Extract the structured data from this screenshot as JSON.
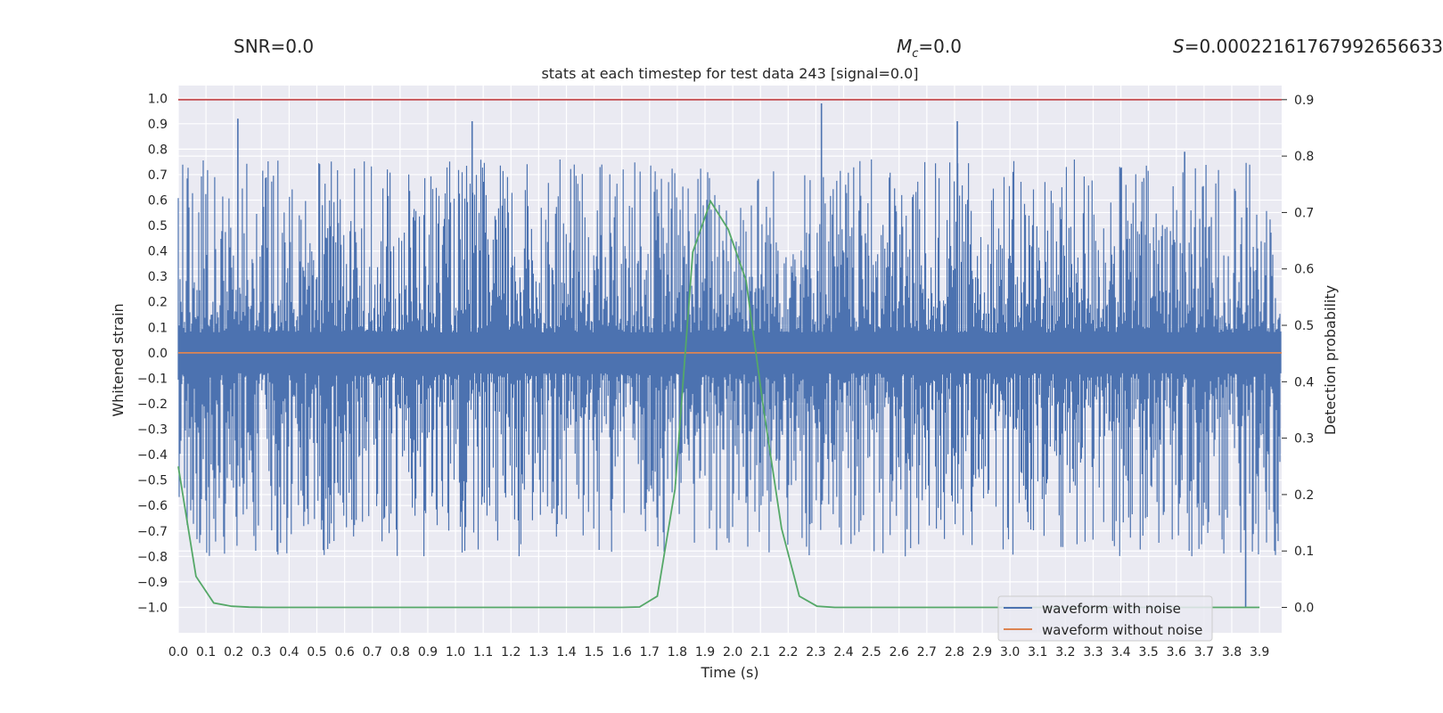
{
  "header": {
    "snr_label": "SNR=0.0",
    "mc_symbol": "M",
    "mc_sub": "c",
    "mc_value": "=0.0",
    "s_symbol": "S",
    "s_value": "=0.00022161767992656633"
  },
  "chart_data": {
    "type": "line",
    "title": "stats at each timestep for test data 243 [signal=0.0]",
    "xlabel": "Time (s)",
    "ylabel": "Whitened strain",
    "y2label": "Detection probability",
    "xlim": [
      0.0,
      3.98
    ],
    "ylim": [
      -1.1,
      1.05
    ],
    "y2lim": [
      -0.045,
      0.925
    ],
    "xticks": [
      0.0,
      0.1,
      0.2,
      0.3,
      0.4,
      0.5,
      0.6,
      0.7,
      0.8,
      0.9,
      1.0,
      1.1,
      1.2,
      1.3,
      1.4,
      1.5,
      1.6,
      1.7,
      1.8,
      1.9,
      2.0,
      2.1,
      2.2,
      2.3,
      2.4,
      2.5,
      2.6,
      2.7,
      2.8,
      2.9,
      3.0,
      3.1,
      3.2,
      3.3,
      3.4,
      3.5,
      3.6,
      3.7,
      3.8,
      3.9
    ],
    "yticks": [
      -1.0,
      -0.9,
      -0.8,
      -0.7,
      -0.6,
      -0.5,
      -0.4,
      -0.3,
      -0.2,
      -0.1,
      0.0,
      0.1,
      0.2,
      0.3,
      0.4,
      0.5,
      0.6,
      0.7,
      0.8,
      0.9,
      1.0
    ],
    "y2ticks": [
      0.0,
      0.1,
      0.2,
      0.3,
      0.4,
      0.5,
      0.6,
      0.7,
      0.8,
      0.9
    ],
    "grid": true,
    "legend_position": "lower-right",
    "series": [
      {
        "name": "waveform with noise",
        "color": "#4c72b0",
        "axis": "left",
        "style": "noise",
        "approx_range": [
          -1.0,
          0.98
        ],
        "peaks": [
          {
            "x": 0.215,
            "y": 0.92
          },
          {
            "x": 1.06,
            "y": 0.91
          },
          {
            "x": 2.32,
            "y": 0.98
          },
          {
            "x": 2.81,
            "y": 0.91
          },
          {
            "x": 3.63,
            "y": 0.79
          },
          {
            "x": 3.85,
            "y": -1.0
          }
        ]
      },
      {
        "name": "waveform without noise",
        "color": "#dd8452",
        "axis": "left",
        "x": [
          0.0,
          3.98
        ],
        "values": [
          0.0,
          0.0
        ]
      },
      {
        "color": "#55a868",
        "axis": "right",
        "x": [
          0.0,
          0.064,
          0.128,
          0.192,
          0.256,
          0.32,
          0.384,
          0.448,
          0.512,
          1.6,
          1.664,
          1.728,
          1.792,
          1.856,
          1.92,
          1.984,
          2.048,
          2.112,
          2.176,
          2.24,
          2.304,
          2.368,
          2.432,
          3.9
        ],
        "values": [
          0.25,
          0.055,
          0.008,
          0.002,
          0.0005,
          0.0,
          0.0,
          0.0,
          0.0,
          0.0,
          0.0008,
          0.02,
          0.21,
          0.63,
          0.72,
          0.67,
          0.58,
          0.35,
          0.14,
          0.02,
          0.002,
          0.0,
          0.0,
          0.0
        ]
      },
      {
        "color": "#c44e52",
        "axis": "right",
        "x": [
          0.0,
          3.98
        ],
        "values": [
          0.9,
          0.9
        ]
      }
    ]
  }
}
